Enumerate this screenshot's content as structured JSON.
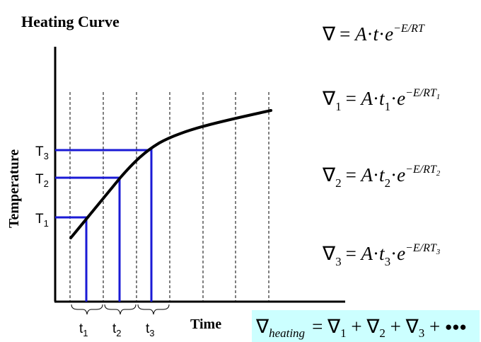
{
  "title": "Heating Curve",
  "axes": {
    "y_label": "Temperature",
    "x_label": "Time"
  },
  "temperature_labels": [
    {
      "base": "T",
      "sub": "3"
    },
    {
      "base": "T",
      "sub": "2"
    },
    {
      "base": "T",
      "sub": "1"
    }
  ],
  "time_labels": [
    {
      "base": "t",
      "sub": "1"
    },
    {
      "base": "t",
      "sub": "2"
    },
    {
      "base": "t",
      "sub": "3"
    }
  ],
  "equations": {
    "main": {
      "lhs": "∇",
      "rhs_prefix": "= ",
      "A": "A",
      "dot1": "·",
      "t": "t",
      "dot2": "·",
      "e": "e",
      "exp": "−E/RT"
    },
    "eq1": {
      "lhs": "∇",
      "lhs_sub": "1",
      "rhs_prefix": "= ",
      "A": "A",
      "dot1": "·",
      "t": "t",
      "t_sub": "1",
      "dot2": "·",
      "e": "e",
      "exp": "−E/RT",
      "exp_sub": "1"
    },
    "eq2": {
      "lhs": "∇",
      "lhs_sub": "2",
      "rhs_prefix": "= ",
      "A": "A",
      "dot1": "·",
      "t": "t",
      "t_sub": "2",
      "dot2": "·",
      "e": "e",
      "exp": "−E/RT",
      "exp_sub": "2"
    },
    "eq3": {
      "lhs": "∇",
      "lhs_sub": "3",
      "rhs_prefix": "= ",
      "A": "A",
      "dot1": "·",
      "t": "t",
      "t_sub": "3",
      "dot2": "·",
      "e": "e",
      "exp": "−E/RT",
      "exp_sub": "3"
    },
    "sum": {
      "lhs": "∇",
      "lhs_sub": "heating",
      "eq": "= ",
      "n1": "∇",
      "n1_sub": "1",
      "plus1": " + ",
      "n2": "∇",
      "n2_sub": "2",
      "plus2": " + ",
      "n3": "∇",
      "n3_sub": "3",
      "plus3": " + ",
      "dots": "●●●"
    }
  },
  "colors": {
    "curve": "#000000",
    "guides": "#1a1ad6",
    "sum_box": "#ccffff"
  }
}
